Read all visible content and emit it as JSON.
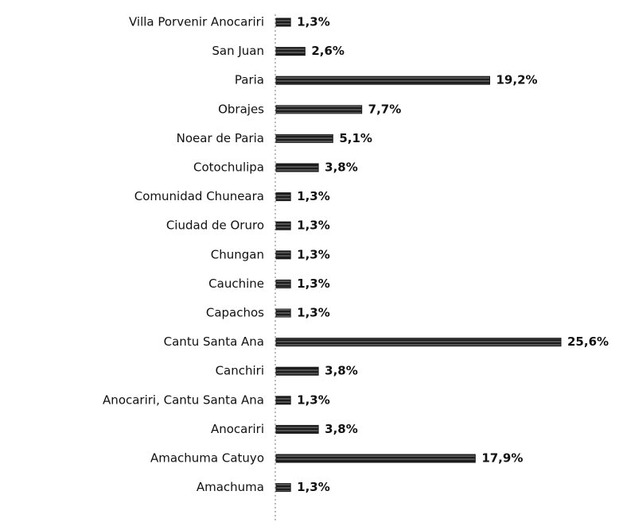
{
  "chart_data": {
    "type": "hbar",
    "color": "#1c1c1c",
    "categories": [
      "Villa Porvenir Anocariri",
      "San Juan",
      "Paria",
      "Obrajes",
      "Noear de Paria",
      "Cotochulipa",
      "Comunidad Chuneara",
      "Ciudad de Oruro",
      "Chungan",
      "Cauchine",
      "Capachos",
      "Cantu Santa Ana",
      "Canchiri",
      "Anocariri, Cantu Santa Ana",
      "Anocariri",
      "Amachuma Catuyo",
      "Amachuma"
    ],
    "values": [
      1.3,
      2.6,
      19.2,
      7.7,
      5.1,
      3.8,
      1.3,
      1.3,
      1.3,
      1.3,
      1.3,
      25.6,
      3.8,
      1.3,
      3.8,
      17.9,
      1.3
    ],
    "value_labels": [
      "1,3%",
      "2,6%",
      "19,2%",
      "7,7%",
      "5,1%",
      "3,8%",
      "1,3%",
      "1,3%",
      "1,3%",
      "1,3%",
      "1,3%",
      "25,6%",
      "3,8%",
      "1,3%",
      "3,8%",
      "17,9%",
      "1,3%"
    ]
  }
}
